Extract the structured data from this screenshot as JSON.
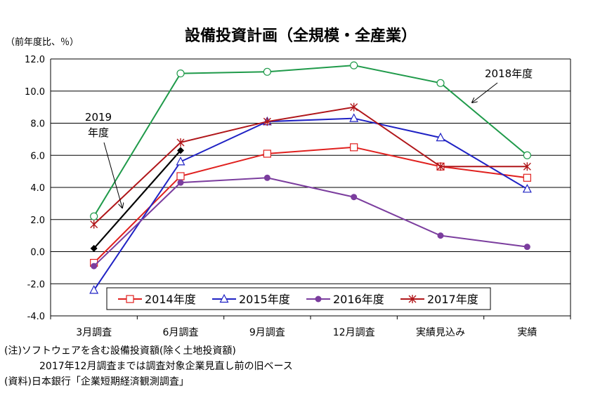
{
  "chart_data": {
    "type": "line",
    "title": "設備投資計画（全規模・全産業）",
    "ylabel": "（前年度比、％）",
    "categories": [
      "3月調査",
      "6月調査",
      "9月調査",
      "12月調査",
      "実績見込み",
      "実績"
    ],
    "yticks": [
      "12.0",
      "10.0",
      "8.0",
      "6.0",
      "4.0",
      "2.0",
      "0.0",
      "-2.0",
      "-4.0"
    ],
    "ylim": [
      -4,
      12
    ],
    "grid": "horizontal",
    "legend_position": "bottom-center",
    "series": [
      {
        "name": "2014年度",
        "color": "#e0201e",
        "marker": "square-open",
        "values": [
          -0.7,
          4.7,
          6.1,
          6.5,
          5.3,
          4.6
        ]
      },
      {
        "name": "2015年度",
        "color": "#1f22c4",
        "marker": "triangle-open",
        "values": [
          -2.4,
          5.6,
          8.1,
          8.3,
          7.1,
          3.9
        ]
      },
      {
        "name": "2016年度",
        "color": "#7b3d9e",
        "marker": "circle-filled",
        "values": [
          -0.9,
          4.3,
          4.6,
          3.4,
          1.0,
          0.3
        ]
      },
      {
        "name": "2017年度",
        "color": "#b0161a",
        "marker": "asterisk",
        "values": [
          1.7,
          6.8,
          8.1,
          9.0,
          5.3,
          5.3
        ]
      },
      {
        "name": "2018年度",
        "color": "#1f9a4a",
        "marker": "circle-open",
        "values": [
          2.2,
          11.1,
          11.2,
          11.6,
          10.5,
          6.0
        ],
        "in_legend": false
      },
      {
        "name": "2019年度",
        "color": "#000000",
        "marker": "diamond-filled",
        "values": [
          0.2,
          6.3,
          null,
          null,
          null,
          null
        ],
        "in_legend": false
      }
    ],
    "annotations": [
      {
        "id": "a2018",
        "text": "2018年度",
        "series": "2018年度"
      },
      {
        "id": "a2019",
        "text_lines": [
          "2019",
          "年度"
        ],
        "series": "2019年度"
      }
    ]
  },
  "notes": [
    "(注)ソフトウェアを含む設備投資額(除く土地投資額)",
    "2017年12月調査までは調査対象企業見直し前の旧ベース",
    "(資料)日本銀行「企業短期経済観測調査」"
  ]
}
